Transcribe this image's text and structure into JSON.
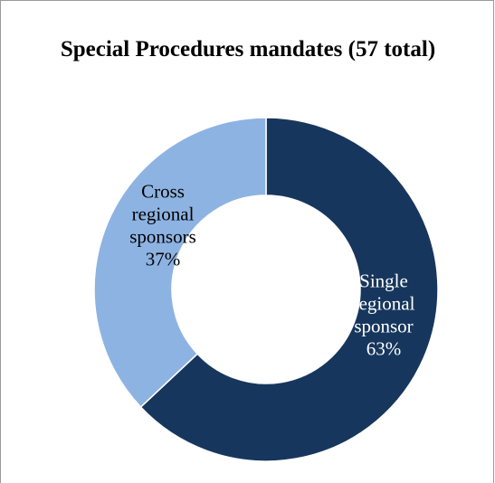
{
  "chart_data": {
    "type": "pie",
    "title": "Special Procedures mandates (57 total)",
    "categories": [
      "Single regional sponsor",
      "Cross regional sponsors"
    ],
    "values": [
      63,
      37
    ],
    "label_lines": [
      [
        "Single",
        "regional",
        "sponsor",
        "63%"
      ],
      [
        "Cross",
        "regional",
        "sponsors",
        "37%"
      ]
    ],
    "colors": [
      "#17365d",
      "#8db3e2"
    ],
    "label_colors": [
      "#ffffff",
      "#000000"
    ],
    "hole": "donut",
    "legend": "none"
  }
}
